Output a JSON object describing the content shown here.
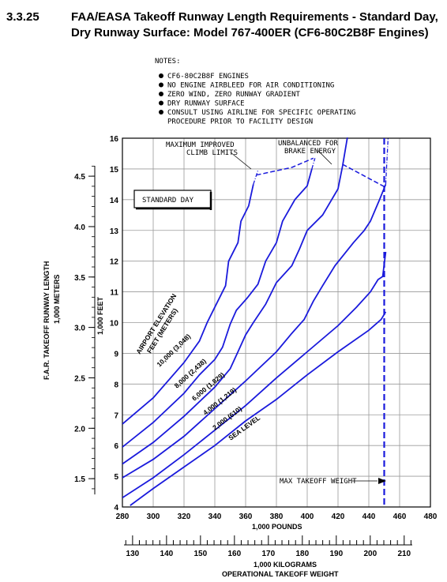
{
  "header": {
    "section": "3.3.25",
    "title_line1": "FAA/EASA Takeoff Runway Length Requirements - Standard Day,",
    "title_line2": "Dry Runway Surface: Model 767-400ER (CF6-80C2B8F Engines)"
  },
  "notes": {
    "heading": "NOTES:",
    "items": [
      "CF6-80C2B8F ENGINES",
      "NO ENGINE AIRBLEED FOR AIR CONDITIONING",
      "ZERO WIND, ZERO RUNWAY GRADIENT",
      "DRY RUNWAY SURFACE",
      "CONSULT USING AIRLINE FOR SPECIFIC OPERATING",
      "PROCEDURE PRIOR TO FACILITY DESIGN"
    ]
  },
  "chart_data": {
    "type": "line",
    "box_label": "STANDARD DAY",
    "x": {
      "label": "1,000 POUNDS",
      "range": [
        280,
        480
      ],
      "ticks": [
        280,
        300,
        320,
        340,
        360,
        380,
        400,
        420,
        440,
        460,
        480
      ]
    },
    "x_secondary": {
      "label_line1": "1,000 KILOGRAMS",
      "label_line2": "OPERATIONAL TAKEOFF WEIGHT",
      "ticks": [
        130,
        140,
        150,
        160,
        170,
        180,
        190,
        200,
        210
      ]
    },
    "y_feet": {
      "label": "1,000 FEET",
      "range": [
        4,
        16
      ],
      "ticks": [
        4,
        5,
        6,
        7,
        8,
        9,
        10,
        11,
        12,
        13,
        14,
        15,
        16
      ]
    },
    "y_meters": {
      "label_line1": "F.A.R. TAKEOFF RUNWAY LENGTH",
      "label_line2": "1,000 METERS",
      "ticks": [
        1.5,
        2.0,
        2.5,
        3.0,
        3.5,
        4.0,
        4.5
      ]
    },
    "elevation_heading": [
      "AIRPORT ELEVATION",
      "FEET   (METERS)"
    ],
    "series": [
      {
        "name": "SEA LEVEL",
        "points": [
          [
            285,
            4.05
          ],
          [
            300,
            4.6
          ],
          [
            320,
            5.3
          ],
          [
            340,
            6.0
          ],
          [
            360,
            6.8
          ],
          [
            380,
            7.5
          ],
          [
            400,
            8.3
          ],
          [
            420,
            9.05
          ],
          [
            440,
            9.75
          ],
          [
            448,
            10.1
          ],
          [
            451,
            10.35
          ]
        ]
      },
      {
        "name": "2,000  (610)",
        "points": [
          [
            280,
            4.3
          ],
          [
            300,
            4.95
          ],
          [
            320,
            5.7
          ],
          [
            340,
            6.5
          ],
          [
            360,
            7.3
          ],
          [
            380,
            8.2
          ],
          [
            400,
            9.05
          ],
          [
            420,
            9.9
          ],
          [
            432,
            10.5
          ],
          [
            441,
            11.0
          ],
          [
            446,
            11.4
          ],
          [
            449,
            11.5
          ],
          [
            451,
            12.3
          ]
        ]
      },
      {
        "name": "4,000  (1,219)",
        "points": [
          [
            280,
            4.95
          ],
          [
            300,
            5.55
          ],
          [
            320,
            6.3
          ],
          [
            340,
            7.2
          ],
          [
            360,
            8.1
          ],
          [
            380,
            9.05
          ],
          [
            390,
            9.65
          ],
          [
            398,
            10.1
          ],
          [
            404,
            10.7
          ],
          [
            410,
            11.2
          ],
          [
            418,
            11.85
          ],
          [
            430,
            12.6
          ],
          [
            437,
            13.0
          ],
          [
            441,
            13.3
          ],
          [
            447,
            14.0
          ],
          [
            451,
            14.5
          ],
          [
            453,
            16.5
          ]
        ]
      },
      {
        "name": "6,000  (1,829)",
        "points": [
          [
            280,
            5.4
          ],
          [
            300,
            6.1
          ],
          [
            320,
            6.95
          ],
          [
            340,
            7.9
          ],
          [
            350,
            8.5
          ],
          [
            355,
            9.05
          ],
          [
            360,
            9.6
          ],
          [
            365,
            10.0
          ],
          [
            373,
            10.6
          ],
          [
            380,
            11.3
          ],
          [
            390,
            11.85
          ],
          [
            395,
            12.4
          ],
          [
            400,
            13.0
          ],
          [
            410,
            13.5
          ],
          [
            420,
            14.35
          ],
          [
            423,
            15.1
          ],
          [
            426,
            16.0
          ],
          [
            428,
            16.7
          ]
        ]
      },
      {
        "name": "8,000  (2,438)",
        "points": [
          [
            280,
            5.95
          ],
          [
            300,
            6.75
          ],
          [
            320,
            7.7
          ],
          [
            330,
            8.3
          ],
          [
            340,
            8.8
          ],
          [
            345,
            9.2
          ],
          [
            350,
            9.95
          ],
          [
            354,
            10.4
          ],
          [
            361,
            10.8
          ],
          [
            368,
            11.25
          ],
          [
            373,
            12.0
          ],
          [
            380,
            12.6
          ],
          [
            384,
            13.3
          ],
          [
            392,
            14.0
          ],
          [
            400,
            14.45
          ],
          [
            403,
            15.0
          ],
          [
            405,
            15.35
          ]
        ]
      },
      {
        "name": "10,000  (3,048)",
        "points": [
          [
            280,
            6.7
          ],
          [
            300,
            7.55
          ],
          [
            320,
            8.7
          ],
          [
            330,
            9.4
          ],
          [
            335,
            10.0
          ],
          [
            341,
            10.6
          ],
          [
            347,
            11.2
          ],
          [
            349,
            12.0
          ],
          [
            355,
            12.6
          ],
          [
            357,
            13.3
          ],
          [
            362,
            13.8
          ],
          [
            365,
            14.5
          ],
          [
            368,
            14.95
          ]
        ]
      }
    ],
    "limit_lines": [
      {
        "name": "MAXIMUM IMPROVED CLIMB LIMITS",
        "points": [
          [
            367,
            14.8
          ],
          [
            390,
            15.05
          ],
          [
            404,
            15.35
          ]
        ]
      },
      {
        "name": "UNBALANCED FOR BRAKE ENERGY",
        "points": [
          [
            423,
            15.15
          ],
          [
            451,
            14.4
          ]
        ]
      }
    ],
    "max_weight": {
      "label": "MAX TAKEOFF WEIGHT",
      "x": 450,
      "y_label": 4.85
    },
    "annotations": {
      "climb_line1": "MAXIMUM IMPROVED",
      "climb_line2": "CLIMB LIMITS",
      "brake_line1": "UNBALANCED FOR",
      "brake_line2": "BRAKE ENERGY"
    },
    "grid": true
  },
  "colors": {
    "curve": "#1a1adc",
    "grid": "#9a9a9a",
    "ink": "#000000"
  }
}
